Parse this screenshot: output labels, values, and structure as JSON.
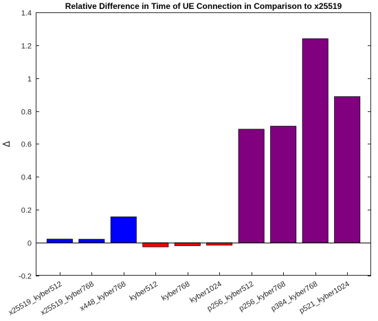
{
  "chart_data": {
    "type": "bar",
    "title": "Relative Difference in Time of UE Connection in Comparison to x25519",
    "xlabel": "",
    "ylabel": "Δ",
    "ylim": [
      -0.2,
      1.4
    ],
    "yticks": [
      -0.2,
      0,
      0.2,
      0.4,
      0.6,
      0.8,
      1,
      1.2,
      1.4
    ],
    "ytick_labels": [
      "-0.2",
      "0",
      "0.2",
      "0.4",
      "0.6",
      "0.8",
      "1",
      "1.2",
      "1.4"
    ],
    "categories": [
      "x25519_kyber512",
      "x25519_kyber768",
      "x448_kyber768",
      "kyber512",
      "kyber768",
      "kyber1024",
      "p256_kyber512",
      "p256_kyber768",
      "p384_kyber768",
      "p521_kyber1024"
    ],
    "values": [
      0.022,
      0.021,
      0.157,
      -0.025,
      -0.018,
      -0.015,
      0.69,
      0.708,
      1.24,
      0.888
    ],
    "colors": [
      "#0000ff",
      "#0000ff",
      "#0000ff",
      "#ff0000",
      "#ff0000",
      "#ff0000",
      "#800080",
      "#800080",
      "#800080",
      "#800080"
    ],
    "grid": false,
    "legend": "none"
  }
}
